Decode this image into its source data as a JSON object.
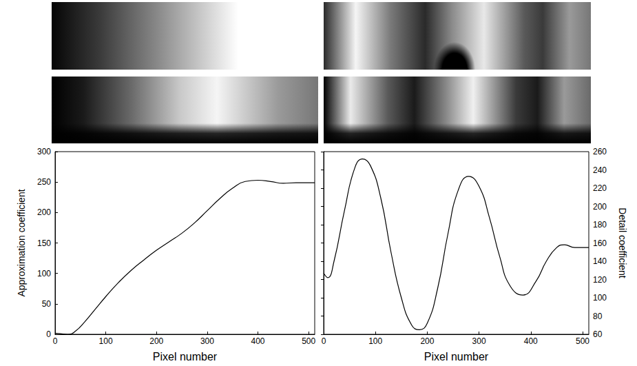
{
  "chart_data": [
    {
      "type": "line",
      "xlabel": "Pixel number",
      "ylabel": "Approximation coefficient",
      "x": [
        0,
        10,
        25,
        40,
        60,
        80,
        100,
        125,
        150,
        175,
        200,
        225,
        250,
        275,
        300,
        325,
        350,
        375,
        400,
        425,
        450,
        475,
        512
      ],
      "values": [
        2,
        1,
        0,
        5,
        22,
        42,
        62,
        85,
        105,
        122,
        138,
        152,
        166,
        183,
        203,
        223,
        240,
        251,
        253,
        251,
        248,
        249,
        249
      ],
      "color": "#000000",
      "line_style": "solid",
      "xlim": [
        0,
        512
      ],
      "xticks": [
        0,
        100,
        200,
        300,
        400,
        500
      ],
      "ylim": [
        0,
        300
      ],
      "yticks": [
        0,
        50,
        100,
        150,
        200,
        250,
        300
      ],
      "grid": false
    },
    {
      "type": "line",
      "xlabel": "Pixel number",
      "y2label": "Detail coefficient",
      "x": [
        0,
        8,
        20,
        40,
        60,
        75,
        90,
        110,
        130,
        150,
        170,
        185,
        200,
        220,
        240,
        260,
        280,
        300,
        320,
        340,
        360,
        385,
        410,
        430,
        450,
        465,
        485,
        512
      ],
      "series": [
        {
          "axis": "y2",
          "color": "#000000",
          "line_style": "solid",
          "values": [
            127,
            122,
            140,
            195,
            242,
            252,
            245,
            210,
            150,
            100,
            70,
            65,
            72,
            110,
            170,
            218,
            233,
            222,
            188,
            145,
            113,
            103,
            118,
            140,
            155,
            158,
            155,
            155
          ]
        }
      ],
      "xlim": [
        0,
        512
      ],
      "xticks": [
        0,
        100,
        200,
        300,
        400,
        500
      ],
      "y2lim": [
        60,
        260
      ],
      "y2ticks": [
        60,
        80,
        100,
        120,
        140,
        160,
        180,
        200,
        220,
        240,
        260
      ],
      "grid": false
    }
  ]
}
